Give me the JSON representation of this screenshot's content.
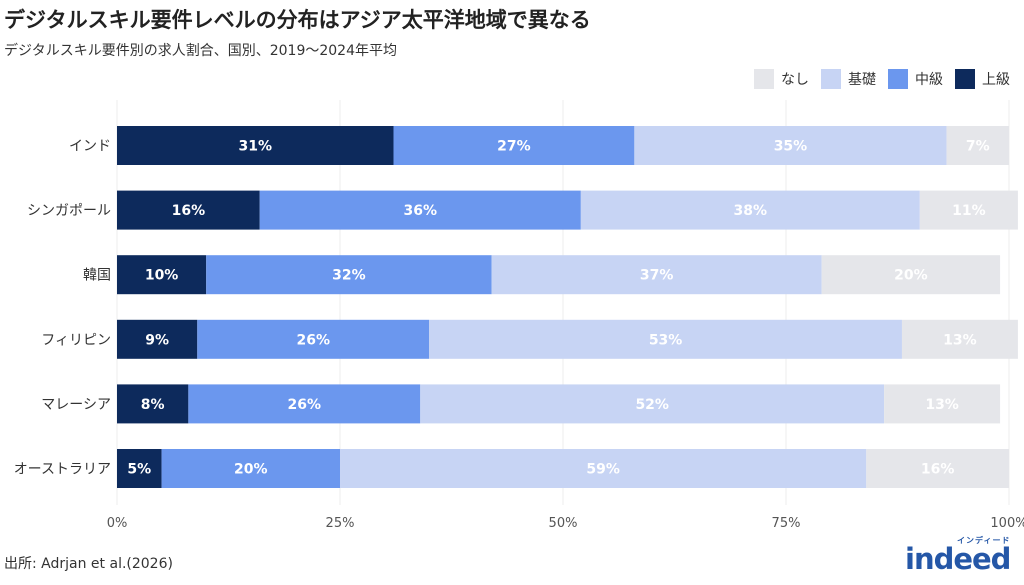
{
  "title": "デジタルスキル要件レベルの分布はアジア太平洋地域で異なる",
  "subtitle": "デジタルスキル要件別の求人割合、国別、2019〜2024年平均",
  "source": "出所: Adrjan et al.(2026)",
  "logo": {
    "wordmark": "indeed",
    "tagline": "インディード",
    "color": "#2557a7"
  },
  "colors": {
    "なし": "#e5e6ea",
    "基礎": "#c7d4f4",
    "中級": "#6b97ee",
    "上級": "#0d2a5c",
    "label_light": "#ffffff"
  },
  "legend": [
    {
      "name": "なし",
      "color": "#e5e6ea"
    },
    {
      "name": "基礎",
      "color": "#c7d4f4"
    },
    {
      "name": "中級",
      "color": "#6b97ee"
    },
    {
      "name": "上級",
      "color": "#0d2a5c"
    }
  ],
  "chart_data": {
    "type": "bar",
    "orientation": "horizontal",
    "stacked": true,
    "title": "デジタルスキル要件レベルの分布はアジア太平洋地域で異なる",
    "subtitle": "デジタルスキル要件別の求人割合、国別、2019〜2024年平均",
    "categories": [
      "インド",
      "シンガポール",
      "韓国",
      "フィリピン",
      "マレーシア",
      "オーストラリア"
    ],
    "series": [
      {
        "name": "上級",
        "values": [
          31,
          16,
          10,
          9,
          8,
          5
        ],
        "labels": [
          "31%",
          "16%",
          "10%",
          "9%",
          "8%",
          "5%"
        ]
      },
      {
        "name": "中級",
        "values": [
          27,
          36,
          32,
          26,
          26,
          20
        ],
        "labels": [
          "27%",
          "36%",
          "32%",
          "26%",
          "26%",
          "20%"
        ]
      },
      {
        "name": "基礎",
        "values": [
          35,
          38,
          37,
          53,
          52,
          59
        ],
        "labels": [
          "35%",
          "38%",
          "37%",
          "53%",
          "52%",
          "59%"
        ]
      },
      {
        "name": "なし",
        "values": [
          7,
          11,
          20,
          13,
          13,
          16
        ],
        "labels": [
          "7%",
          "11%",
          "20%",
          "13%",
          "13%",
          "16%"
        ]
      }
    ],
    "xlim": [
      0,
      100
    ],
    "xticks": [
      0,
      25,
      50,
      75,
      100
    ],
    "xtick_labels": [
      "0%",
      "25%",
      "50%",
      "75%",
      "100%"
    ],
    "grid": true,
    "legend_position": "top-right"
  }
}
